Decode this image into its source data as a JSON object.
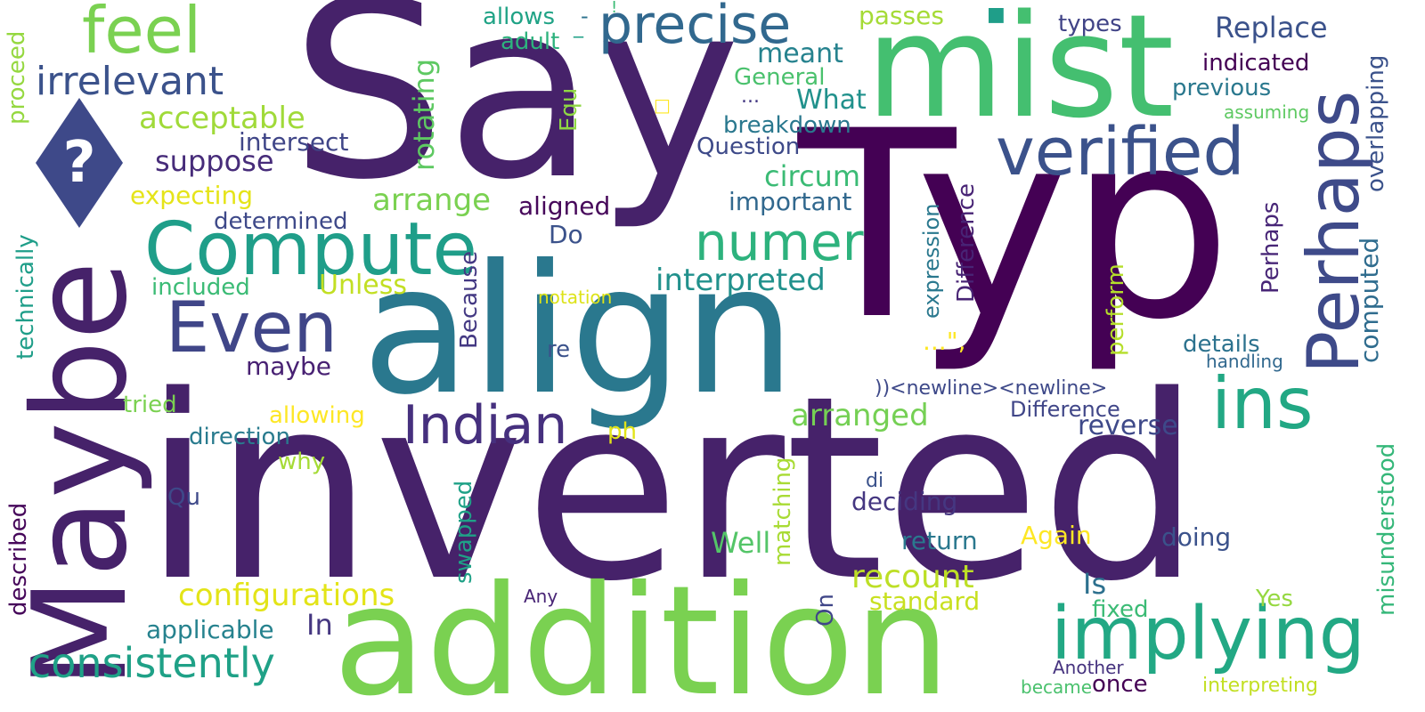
{
  "words": [
    {
      "text": "Say",
      "color": "#46226a"
    },
    {
      "text": "inverted",
      "color": "#46226a"
    },
    {
      "text": "Typ",
      "color": "#440154"
    },
    {
      "text": "align",
      "color": "#2a788e"
    },
    {
      "text": "mist",
      "color": "#44bf70"
    },
    {
      "text": "addition",
      "color": "#7ad151"
    },
    {
      "text": "Maybe",
      "color": "#46226a"
    },
    {
      "text": "Compute",
      "color": "#1f9e89"
    },
    {
      "text": "implying",
      "color": "#22a884"
    },
    {
      "text": "verified",
      "color": "#3b528b"
    },
    {
      "text": "Even",
      "color": "#404688"
    },
    {
      "text": "precise",
      "color": "#31688e"
    },
    {
      "text": "feel",
      "color": "#7ad151"
    },
    {
      "text": "Perhaps",
      "color": "#3e4a89"
    },
    {
      "text": "ins",
      "color": "#22a884"
    },
    {
      "text": "Indian",
      "color": "#46307e"
    },
    {
      "text": "numer",
      "color": "#2db27d"
    },
    {
      "text": "consistently",
      "color": "#1fa187"
    },
    {
      "text": "irrelevant",
      "color": "#3b528b"
    },
    {
      "text": "configurations",
      "color": "#e3e418"
    },
    {
      "text": "interpreted",
      "color": "#21918c"
    },
    {
      "text": "acceptable",
      "color": "#a0da39"
    },
    {
      "text": "recount",
      "color": "#bddf26"
    },
    {
      "text": "arranged",
      "color": "#75d054"
    },
    {
      "text": "rotating",
      "color": "#5ec962"
    },
    {
      "text": "suppose",
      "color": "#472c7a"
    },
    {
      "text": "arrange",
      "color": "#7ad151"
    },
    {
      "text": "circum",
      "color": "#3bbb75"
    },
    {
      "text": "Unless",
      "color": "#c2df23"
    },
    {
      "text": "Replace",
      "color": "#3b528b"
    },
    {
      "text": "reverse",
      "color": "#3e4989"
    },
    {
      "text": "passes",
      "color": "#a5db36"
    },
    {
      "text": "meant",
      "color": "#26828e"
    },
    {
      "text": "allows",
      "color": "#20a386"
    },
    {
      "text": "adult",
      "color": "#2db27d"
    },
    {
      "text": "types",
      "color": "#414487"
    },
    {
      "text": "Well",
      "color": "#54c568"
    },
    {
      "text": "maybe",
      "color": "#482173"
    },
    {
      "text": "expression",
      "color": "#2a788e"
    },
    {
      "text": "Difference",
      "color": "#482475"
    },
    {
      "text": "Difference",
      "color": "#404688"
    },
    {
      "text": "computed",
      "color": "#2f6c8e"
    },
    {
      "text": "overlapping",
      "color": "#3b528b"
    },
    {
      "text": "misunderstood",
      "color": "#35b779"
    },
    {
      "text": "details",
      "color": "#2c728e"
    },
    {
      "text": "handling",
      "color": "#31688e"
    },
    {
      "text": "indicated",
      "color": "#440154"
    },
    {
      "text": "previous",
      "color": "#2a788e"
    },
    {
      "text": "assuming",
      "color": "#5ec962"
    },
    {
      "text": "breakdown",
      "color": "#2a788e"
    },
    {
      "text": "What",
      "color": "#21918c"
    },
    {
      "text": "General",
      "color": "#4ac16d"
    },
    {
      "text": "Question",
      "color": "#3e4a89"
    },
    {
      "text": "important",
      "color": "#31688e"
    },
    {
      "text": "aligned",
      "color": "#46075a"
    },
    {
      "text": "intersect",
      "color": "#404688"
    },
    {
      "text": "expecting",
      "color": "#e5e419"
    },
    {
      "text": "determined",
      "color": "#3e4989"
    },
    {
      "text": "included",
      "color": "#3bbb75"
    },
    {
      "text": "technically",
      "color": "#1f9e89"
    },
    {
      "text": "proceed",
      "color": "#95d840"
    },
    {
      "text": "described",
      "color": "#46075a"
    },
    {
      "text": "Because",
      "color": "#443983"
    },
    {
      "text": "perform",
      "color": "#b5de2b"
    },
    {
      "text": "Perhaps",
      "color": "#482677"
    },
    {
      "text": "Equ",
      "color": "#8fd744"
    },
    {
      "text": "Do",
      "color": "#3b528b"
    },
    {
      "text": "re",
      "color": "#3b528b"
    },
    {
      "text": "notation",
      "color": "#dde318"
    },
    {
      "text": "tried",
      "color": "#7ad151"
    },
    {
      "text": "allowing",
      "color": "#fde725"
    },
    {
      "text": "direction",
      "color": "#297b8e"
    },
    {
      "text": "why",
      "color": "#a5db36"
    },
    {
      "text": "ph",
      "color": "#e2e418"
    },
    {
      "text": "Qu",
      "color": "#3e4989"
    },
    {
      "text": "swapped",
      "color": "#1fa187"
    },
    {
      "text": "matching",
      "color": "#a8db34"
    },
    {
      "text": "deciding",
      "color": "#453781"
    },
    {
      "text": "di",
      "color": "#3b528b"
    },
    {
      "text": "return",
      "color": "#2a788e"
    },
    {
      "text": "Again",
      "color": "#fde725"
    },
    {
      "text": "doing",
      "color": "#3b528b"
    },
    {
      "text": "applicable",
      "color": "#26828e"
    },
    {
      "text": "In",
      "color": "#453781"
    },
    {
      "text": "standard",
      "color": "#c8e020"
    },
    {
      "text": "Is",
      "color": "#2d708e"
    },
    {
      "text": "fixed",
      "color": "#3bbb75"
    },
    {
      "text": "Yes",
      "color": "#95d840"
    },
    {
      "text": "On",
      "color": "#404688"
    },
    {
      "text": "Any",
      "color": "#482475"
    },
    {
      "text": "Another",
      "color": "#46337f"
    },
    {
      "text": "became",
      "color": "#4ac16d"
    },
    {
      "text": "once",
      "color": "#440154"
    },
    {
      "text": "interpreting",
      "color": "#c2df23"
    },
    {
      "text": "))<newline><newline>",
      "color": "#3e4989"
    },
    {
      "text": "...\",",
      "color": "#fde725"
    },
    {
      "text": "...",
      "color": "#443983"
    },
    {
      "text": "-",
      "color": "#2c728e"
    },
    {
      "text": "_",
      "color": "#1fa187"
    },
    {
      "text": "!",
      "color": "#3bbb75"
    },
    {
      "text": "□",
      "color": "#fde725"
    },
    {
      "text": "■",
      "color": "#1f9e89"
    }
  ],
  "icon": {
    "name": "question-diamond",
    "glyph": "?",
    "color": "#3e4989"
  }
}
